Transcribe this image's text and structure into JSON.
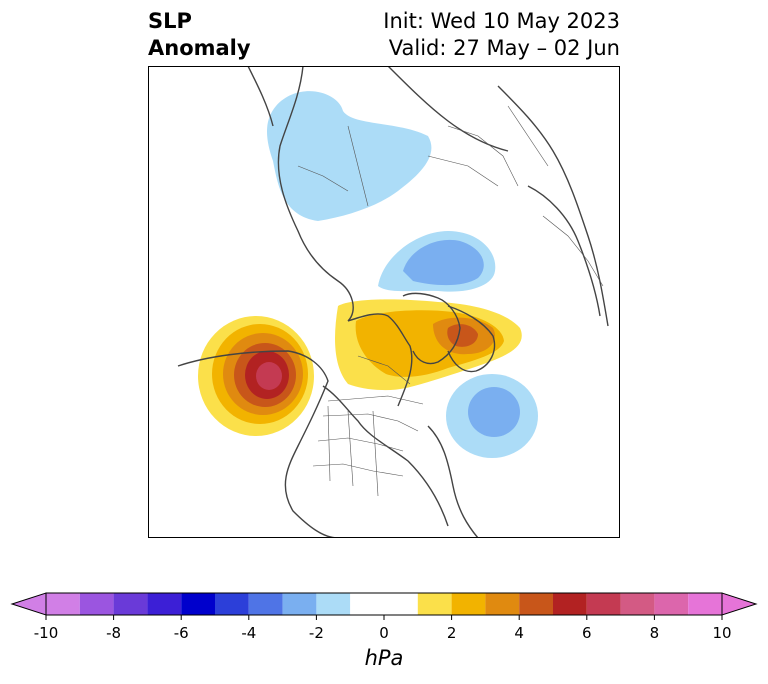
{
  "title": {
    "variable_line1": "SLP",
    "variable_line2": "Anomaly",
    "init": "Init: Wed 10 May 2023",
    "valid": "Valid: 27 May – 02 Jun"
  },
  "map": {
    "projection": "north-polar-stereographic",
    "region": "North America / Arctic",
    "features": [
      "coastlines",
      "country-borders",
      "us-state-borders",
      "canadian-province-borders"
    ],
    "anomalies": [
      {
        "name": "positive-anomaly-northeast-pacific",
        "sign": "positive",
        "peak_hpa": 7
      },
      {
        "name": "positive-anomaly-canadian-arctic-greenland",
        "sign": "positive",
        "peak_hpa": 5
      },
      {
        "name": "negative-anomaly-north-atlantic",
        "sign": "negative",
        "peak_hpa": -3
      },
      {
        "name": "negative-anomaly-barents-kara",
        "sign": "negative",
        "peak_hpa": -3
      },
      {
        "name": "negative-anomaly-siberia",
        "sign": "negative",
        "peak_hpa": -2
      }
    ]
  },
  "colorbar": {
    "unit": "hPa",
    "extend": "both",
    "levels": [
      -10,
      -9,
      -8,
      -7,
      -6,
      -5,
      -4,
      -3,
      -2,
      -1,
      1,
      2,
      3,
      4,
      5,
      6,
      7,
      8,
      9,
      10
    ],
    "colors": [
      "#d17fe6",
      "#9b55e0",
      "#6a3ad8",
      "#3c1fd6",
      "#0000cc",
      "#2c3fd9",
      "#4f74e6",
      "#7aaff0",
      "#acdcf7",
      "#ffffff",
      "#fbe04a",
      "#f2b300",
      "#e08a10",
      "#c8561a",
      "#b22222",
      "#c43a52",
      "#d35a84",
      "#dc66ac",
      "#e674d8"
    ],
    "ticks": [
      "-10",
      "-8",
      "-6",
      "-4",
      "-2",
      "0",
      "2",
      "4",
      "6",
      "8",
      "10"
    ]
  }
}
